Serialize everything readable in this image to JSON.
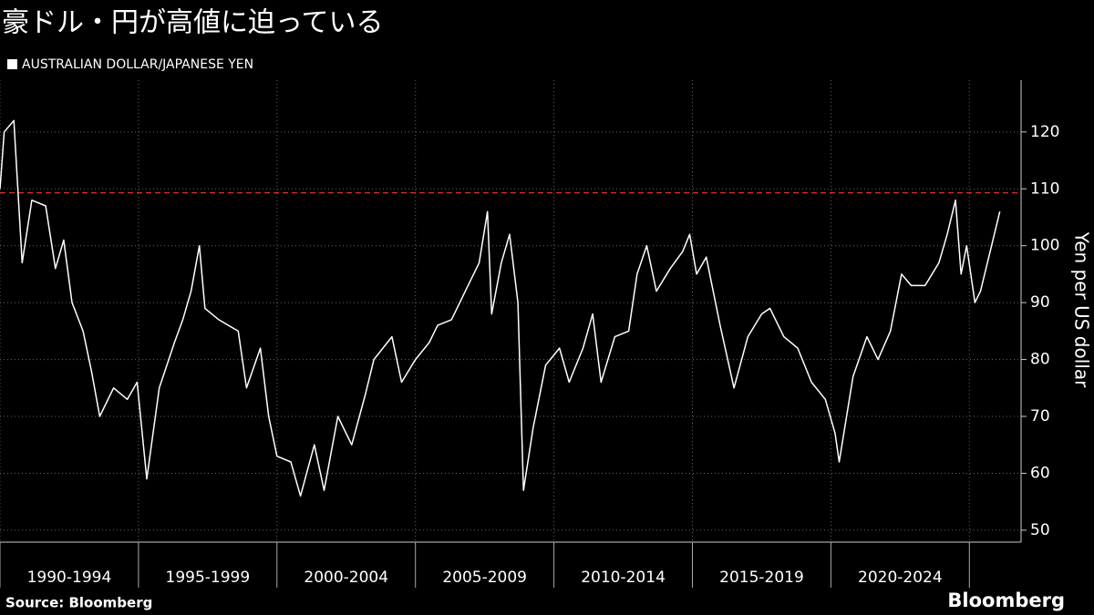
{
  "chart_data": {
    "type": "line",
    "title": "豪ドル・円が高値に迫っている",
    "y_axis_label": "Yen per US dollar",
    "source": "Source: Bloomberg",
    "brand": "Bloomberg",
    "x": [
      1990.0,
      1990.15,
      1990.5,
      1990.8,
      1991.15,
      1991.65,
      1992.0,
      1992.3,
      1992.6,
      1993.0,
      1993.3,
      1993.6,
      1994.1,
      1994.6,
      1994.95,
      1995.3,
      1995.75,
      1996.3,
      1996.6,
      1996.9,
      1997.2,
      1997.4,
      1997.9,
      1998.6,
      1998.9,
      1999.4,
      1999.7,
      2000.0,
      2000.5,
      2000.85,
      2001.35,
      2001.7,
      2002.2,
      2002.7,
      2003.2,
      2003.5,
      2004.15,
      2004.5,
      2005.0,
      2005.5,
      2005.8,
      2006.3,
      2006.8,
      2007.3,
      2007.6,
      2007.75,
      2008.1,
      2008.4,
      2008.7,
      2008.9,
      2009.25,
      2009.7,
      2010.2,
      2010.55,
      2011.05,
      2011.4,
      2011.7,
      2012.2,
      2012.7,
      2013.0,
      2013.35,
      2013.7,
      2014.2,
      2014.65,
      2014.9,
      2015.15,
      2015.5,
      2016.0,
      2016.5,
      2017.0,
      2017.5,
      2017.8,
      2018.3,
      2018.8,
      2019.3,
      2019.8,
      2020.15,
      2020.3,
      2020.8,
      2021.3,
      2021.7,
      2022.15,
      2022.55,
      2022.9,
      2023.4,
      2023.9,
      2024.2,
      2024.5,
      2024.7,
      2024.9,
      2025.2,
      2025.4,
      2025.7,
      2026.1
    ],
    "series": [
      {
        "name": "AUSTRALIAN DOLLAR/JAPANESE YEN",
        "color": "#ffffff",
        "values": [
          110,
          120,
          122,
          97,
          108,
          107,
          96,
          101,
          90,
          85,
          78,
          70,
          75,
          73,
          76,
          59,
          75,
          83,
          87,
          92,
          100,
          89,
          87,
          85,
          75,
          82,
          70,
          63,
          62,
          56,
          65,
          57,
          70,
          65,
          74,
          80,
          84,
          76,
          80,
          83,
          86,
          87,
          92,
          97,
          106,
          88,
          97,
          102,
          90,
          57,
          68,
          79,
          82,
          76,
          82,
          88,
          76,
          84,
          85,
          95,
          100,
          92,
          96,
          99,
          102,
          95,
          98,
          86,
          75,
          84,
          88,
          89,
          84,
          82,
          76,
          73,
          67,
          62,
          77,
          84,
          80,
          85,
          95,
          93,
          93,
          97,
          102,
          108,
          95,
          100,
          90,
          92,
          98,
          106
        ]
      }
    ],
    "xlim": [
      1990,
      2026.8
    ],
    "xticks": [
      1990,
      1995,
      2000,
      2005,
      2010,
      2015,
      2020,
      2025
    ],
    "period_labels": [
      "1990-1994",
      "1995-1999",
      "2000-2004",
      "2005-2009",
      "2010-2014",
      "2015-2019",
      "2020-2024"
    ],
    "ylim": [
      47.9,
      129.1
    ],
    "yticks": [
      50,
      60,
      70,
      80,
      90,
      100,
      110,
      120
    ],
    "reference_line": {
      "value": 109.3,
      "color": "#e03030"
    },
    "grid": true
  }
}
